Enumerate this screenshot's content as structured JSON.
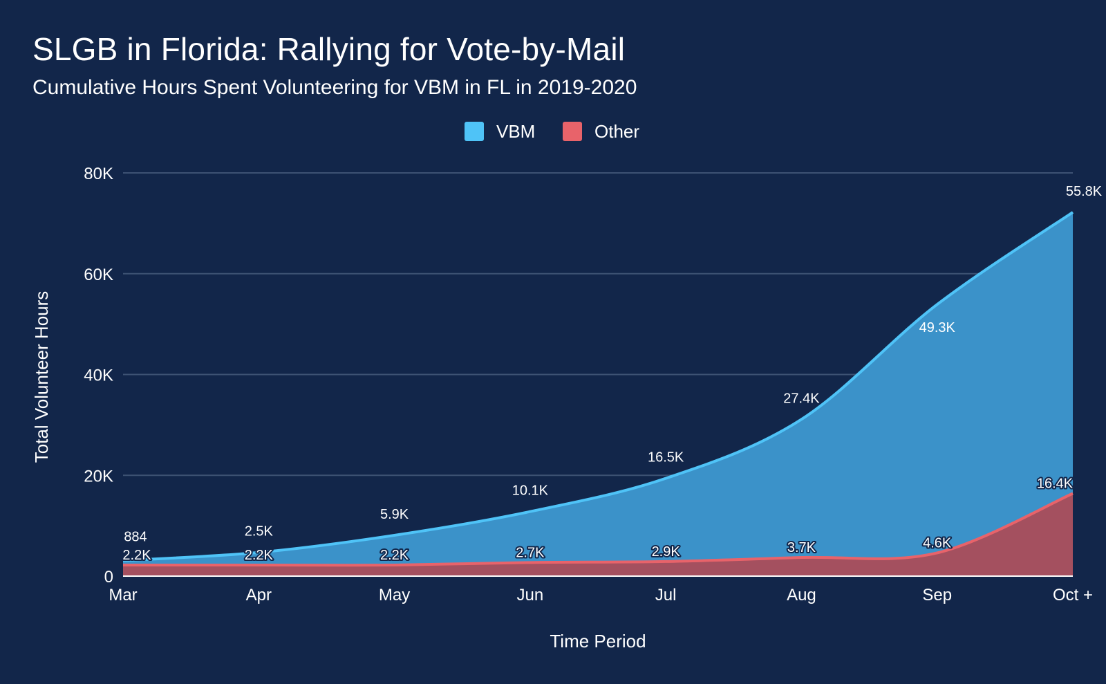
{
  "title": "SLGB in Florida: Rallying for Vote-by-Mail",
  "subtitle": "Cumulative Hours Spent Volunteering for VBM in FL in 2019-2020",
  "chart_data": {
    "type": "area",
    "stacked": true,
    "title": "SLGB in Florida: Rallying for Vote-by-Mail",
    "subtitle": "Cumulative Hours Spent Volunteering for VBM in FL in 2019-2020",
    "xlabel": "Time Period",
    "ylabel": "Total Volunteer Hours",
    "categories": [
      "Mar",
      "Apr",
      "May",
      "Jun",
      "Jul",
      "Aug",
      "Sep",
      "Oct +"
    ],
    "ylim": [
      0,
      80000
    ],
    "yticks": [
      0,
      20000,
      40000,
      60000,
      80000
    ],
    "ytick_labels": [
      "0",
      "20K",
      "40K",
      "60K",
      "80K"
    ],
    "grid": true,
    "legend_position": "top-center",
    "series": [
      {
        "name": "VBM",
        "color": "#4fc3f7",
        "values": [
          884,
          2500,
          5900,
          10100,
          16500,
          27400,
          49300,
          55800
        ],
        "labels": [
          "884",
          "2.5K",
          "5.9K",
          "10.1K",
          "16.5K",
          "27.4K",
          "49.3K",
          "55.8K"
        ]
      },
      {
        "name": "Other",
        "color": "#e8636a",
        "values": [
          2200,
          2200,
          2200,
          2700,
          2900,
          3700,
          4600,
          16400
        ],
        "labels": [
          "2.2K",
          "2.2K",
          "2.2K",
          "2.7K",
          "2.9K",
          "3.7K",
          "4.6K",
          "16.4K"
        ]
      }
    ]
  }
}
